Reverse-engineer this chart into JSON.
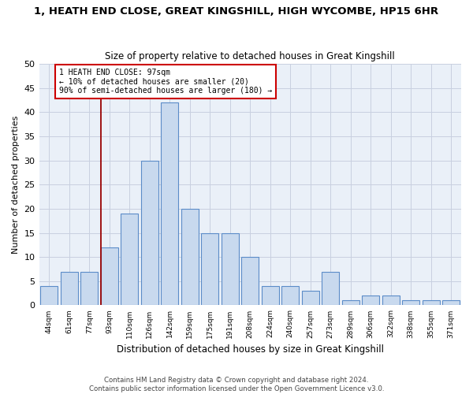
{
  "title": "1, HEATH END CLOSE, GREAT KINGSHILL, HIGH WYCOMBE, HP15 6HR",
  "subtitle": "Size of property relative to detached houses in Great Kingshill",
  "xlabel": "Distribution of detached houses by size in Great Kingshill",
  "ylabel": "Number of detached properties",
  "bar_color": "#c8d9ee",
  "bar_edge_color": "#5b8cc8",
  "background_color": "#ffffff",
  "grid_color": "#c8d0e0",
  "ax_bg_color": "#eaf0f8",
  "categories": [
    "44sqm",
    "61sqm",
    "77sqm",
    "93sqm",
    "110sqm",
    "126sqm",
    "142sqm",
    "159sqm",
    "175sqm",
    "191sqm",
    "208sqm",
    "224sqm",
    "240sqm",
    "257sqm",
    "273sqm",
    "289sqm",
    "306sqm",
    "322sqm",
    "338sqm",
    "355sqm",
    "371sqm"
  ],
  "values": [
    4,
    7,
    7,
    12,
    19,
    30,
    42,
    20,
    15,
    15,
    10,
    4,
    4,
    3,
    7,
    1,
    2,
    2,
    1,
    1,
    1
  ],
  "ylim": [
    0,
    50
  ],
  "yticks": [
    0,
    5,
    10,
    15,
    20,
    25,
    30,
    35,
    40,
    45,
    50
  ],
  "red_line_bin_index": 3,
  "annotation_title": "1 HEATH END CLOSE: 97sqm",
  "annotation_line1": "← 10% of detached houses are smaller (20)",
  "annotation_line2": "90% of semi-detached houses are larger (180) →",
  "footer_line1": "Contains HM Land Registry data © Crown copyright and database right 2024.",
  "footer_line2": "Contains public sector information licensed under the Open Government Licence v3.0."
}
